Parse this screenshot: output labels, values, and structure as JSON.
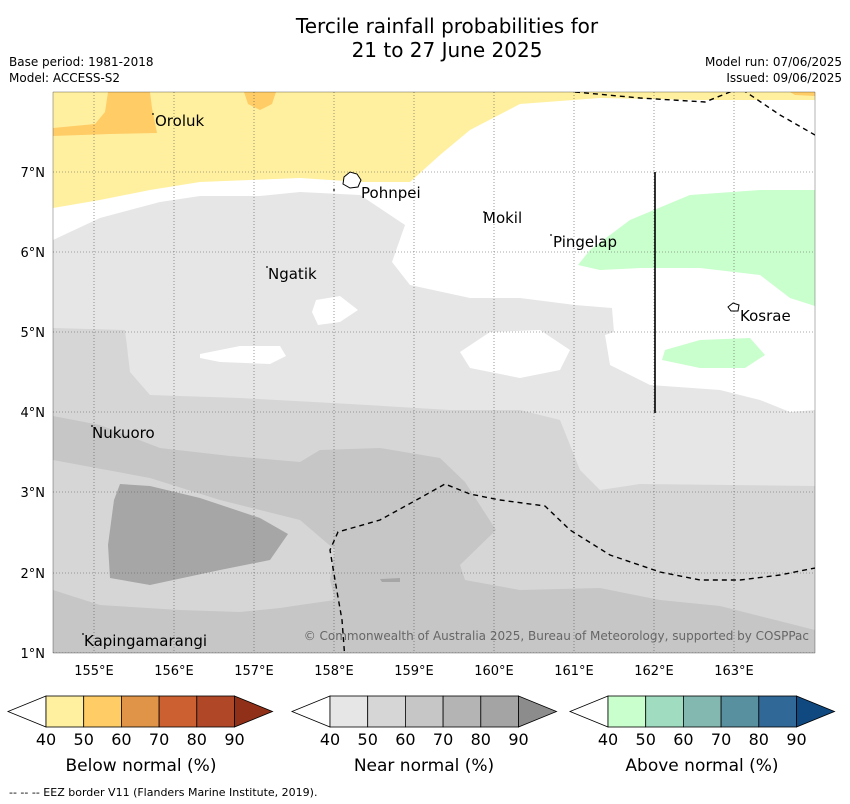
{
  "title_line1": "Tercile rainfall probabilities for",
  "title_line2": "21 to 27 June 2025",
  "meta_left": [
    "Base period: 1981-2018",
    "Model: ACCESS-S2"
  ],
  "meta_right": [
    "Model run: 07/06/2025",
    "Issued: 09/06/2025"
  ],
  "map": {
    "lon_labels": [
      "155°E",
      "156°E",
      "157°E",
      "158°E",
      "159°E",
      "160°E",
      "161°E",
      "162°E",
      "163°E"
    ],
    "lat_labels": [
      "1°N",
      "2°N",
      "3°N",
      "4°N",
      "5°N",
      "6°N",
      "7°N"
    ],
    "places": [
      "Oroluk",
      "Pohnpei",
      "Mokil",
      "Pingelap",
      "Ngatik",
      "Kosrae",
      "Nukuoro",
      "Kapingamarangi"
    ],
    "copyright": "© Commonwealth of Australia 2025, Bureau of Meteorology, supported by COSPPac"
  },
  "colorbars": [
    {
      "label": "Below normal (%)",
      "ticks": [
        "40",
        "50",
        "60",
        "70",
        "80",
        "90"
      ],
      "colors": [
        "#fff0a0",
        "#ffcc66",
        "#e09448",
        "#cc6030",
        "#b04828",
        "#903018"
      ]
    },
    {
      "label": "Near normal (%)",
      "ticks": [
        "40",
        "50",
        "60",
        "70",
        "80",
        "90"
      ],
      "colors": [
        "#e6e6e6",
        "#d6d6d6",
        "#c6c6c6",
        "#b4b4b4",
        "#a4a4a4",
        "#8c8c8c"
      ]
    },
    {
      "label": "Above normal (%)",
      "ticks": [
        "40",
        "50",
        "60",
        "70",
        "80",
        "90"
      ],
      "colors": [
        "#c8ffcc",
        "#a0dcc0",
        "#82b8b0",
        "#5890a0",
        "#306898",
        "#104880"
      ]
    }
  ],
  "footnote": "--  --  -- EEZ border V11 (Flanders Marine Institute, 2019)."
}
